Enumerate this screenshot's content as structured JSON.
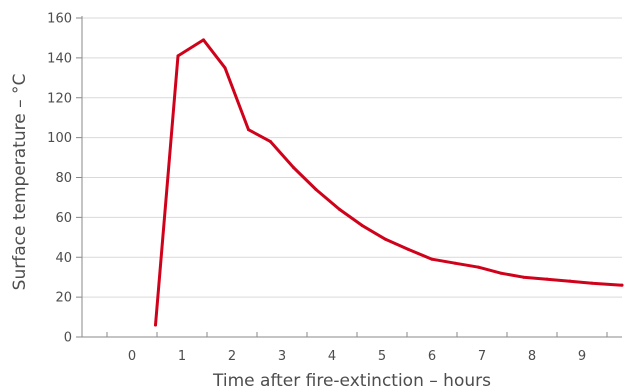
{
  "chart_data": {
    "type": "line",
    "title": "",
    "xlabel": "Time after fire-extinction – hours",
    "ylabel": "Surface temperature – °C",
    "xlim": [
      -1,
      9.8
    ],
    "ylim": [
      0,
      160
    ],
    "x_ticks": [
      0,
      1,
      2,
      3,
      4,
      5,
      6,
      7,
      8,
      9
    ],
    "x_minor_ticks": [
      -1,
      -0.5,
      0.5,
      1.5,
      2.5,
      3.5,
      4.5,
      5.5,
      6.5,
      7.5,
      8.5,
      9.5
    ],
    "y_ticks": [
      0,
      20,
      40,
      60,
      80,
      100,
      120,
      140,
      160
    ],
    "grid": "horizontal",
    "line_color": "#d0021b",
    "series": [
      {
        "x": [
          0.47,
          0.92,
          1.43,
          1.86,
          2.33,
          2.77,
          3.23,
          3.68,
          4.15,
          4.6,
          5.07,
          5.52,
          6.0,
          6.46,
          6.93,
          7.38,
          7.83,
          8.3,
          8.76,
          9.2,
          9.8
        ],
        "y": [
          6,
          141,
          149,
          135,
          104,
          98,
          85,
          74,
          64,
          56,
          49,
          44,
          39,
          37,
          35,
          32,
          30,
          29,
          28,
          27,
          26
        ]
      }
    ]
  }
}
